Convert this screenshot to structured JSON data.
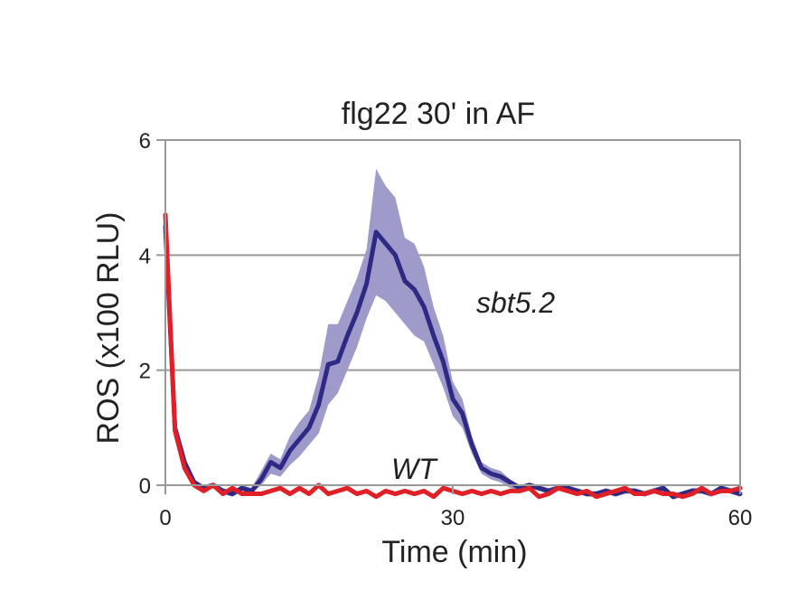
{
  "chart_data": {
    "type": "line",
    "title": "flg22 30' in AF",
    "xlabel": "Time (min)",
    "ylabel": "ROS (x100 RLU)",
    "xlim": [
      0,
      60
    ],
    "ylim": [
      0,
      6
    ],
    "xticks": [
      "0",
      "30",
      "60"
    ],
    "yticks": [
      "0",
      "2",
      "4",
      "6"
    ],
    "grid": "horizontal",
    "colors": {
      "sbt": "#2e2a84",
      "sbt_band": "#9e9bcb",
      "wt": "#e01f27",
      "axis": "#999999"
    },
    "series": [
      {
        "name": "sbt5.2",
        "x": [
          0,
          1,
          2,
          3,
          4,
          5,
          6,
          7,
          8,
          9,
          10,
          11,
          12,
          13,
          14,
          15,
          16,
          17,
          18,
          19,
          20,
          21,
          22,
          23,
          24,
          25,
          26,
          27,
          28,
          29,
          30,
          31,
          32,
          33,
          34,
          35,
          36,
          37,
          38,
          39,
          40,
          41,
          42,
          43,
          44,
          45,
          46,
          47,
          48,
          49,
          50,
          51,
          52,
          53,
          54,
          55,
          56,
          57,
          58,
          59,
          60
        ],
        "y": [
          4.5,
          1.0,
          0.4,
          0.05,
          -0.05,
          0.0,
          -0.1,
          -0.15,
          -0.05,
          -0.1,
          0.1,
          0.4,
          0.3,
          0.6,
          0.8,
          1.0,
          1.4,
          2.1,
          2.15,
          2.6,
          3.0,
          3.5,
          4.4,
          4.2,
          4.0,
          3.55,
          3.4,
          3.1,
          2.6,
          2.15,
          1.5,
          1.25,
          0.7,
          0.3,
          0.2,
          0.15,
          0.05,
          -0.05,
          0.0,
          -0.05,
          -0.1,
          -0.05,
          -0.05,
          -0.1,
          -0.15,
          -0.15,
          -0.1,
          -0.15,
          -0.1,
          -0.1,
          -0.15,
          -0.1,
          -0.05,
          -0.2,
          -0.15,
          -0.1,
          -0.1,
          -0.15,
          -0.05,
          -0.1,
          -0.15
        ],
        "y_lower": [
          4.3,
          0.9,
          0.35,
          0.0,
          -0.1,
          -0.05,
          -0.15,
          -0.2,
          -0.1,
          -0.15,
          0.0,
          0.2,
          0.15,
          0.35,
          0.5,
          0.7,
          0.9,
          1.4,
          1.6,
          2.0,
          2.4,
          2.9,
          3.3,
          3.2,
          3.0,
          2.8,
          2.6,
          2.5,
          2.1,
          1.7,
          1.2,
          1.0,
          0.55,
          0.2,
          0.1,
          0.05,
          -0.05,
          -0.1,
          -0.05,
          -0.1,
          -0.15,
          -0.1,
          -0.1,
          -0.15,
          -0.2,
          -0.2,
          -0.15,
          -0.2,
          -0.15,
          -0.15,
          -0.2,
          -0.15,
          -0.1,
          -0.25,
          -0.2,
          -0.15,
          -0.15,
          -0.2,
          -0.1,
          -0.15,
          -0.2
        ],
        "y_upper": [
          4.7,
          1.1,
          0.45,
          0.1,
          0.0,
          0.05,
          -0.05,
          -0.1,
          0.0,
          -0.05,
          0.25,
          0.55,
          0.45,
          0.85,
          1.1,
          1.3,
          1.9,
          2.8,
          2.8,
          3.2,
          3.6,
          4.1,
          5.5,
          5.2,
          5.0,
          4.3,
          4.2,
          3.8,
          3.1,
          2.6,
          1.8,
          1.5,
          0.85,
          0.4,
          0.3,
          0.25,
          0.1,
          0.0,
          0.05,
          0.0,
          -0.05,
          0.0,
          0.0,
          -0.05,
          -0.1,
          -0.1,
          -0.05,
          -0.1,
          -0.05,
          -0.05,
          -0.1,
          -0.05,
          0.0,
          -0.15,
          -0.1,
          -0.05,
          -0.05,
          -0.1,
          0.0,
          -0.05,
          -0.1
        ]
      },
      {
        "name": "WT",
        "x": [
          0,
          1,
          2,
          3,
          4,
          5,
          6,
          7,
          8,
          9,
          10,
          11,
          12,
          13,
          14,
          15,
          16,
          17,
          18,
          19,
          20,
          21,
          22,
          23,
          24,
          25,
          26,
          27,
          28,
          29,
          30,
          31,
          32,
          33,
          34,
          35,
          36,
          37,
          38,
          39,
          40,
          41,
          42,
          43,
          44,
          45,
          46,
          47,
          48,
          49,
          50,
          51,
          52,
          53,
          54,
          55,
          56,
          57,
          58,
          59,
          60
        ],
        "y": [
          4.7,
          0.95,
          0.3,
          0.0,
          -0.1,
          0.0,
          -0.15,
          -0.05,
          -0.15,
          -0.15,
          -0.15,
          -0.1,
          -0.05,
          -0.15,
          -0.05,
          -0.15,
          0.0,
          -0.15,
          -0.1,
          -0.05,
          -0.15,
          -0.1,
          -0.2,
          -0.1,
          -0.15,
          -0.1,
          -0.15,
          -0.1,
          -0.2,
          -0.05,
          -0.1,
          -0.15,
          -0.1,
          -0.15,
          -0.1,
          -0.15,
          -0.1,
          -0.1,
          -0.05,
          -0.2,
          -0.15,
          -0.05,
          -0.1,
          -0.15,
          -0.1,
          -0.2,
          -0.15,
          -0.1,
          -0.05,
          -0.15,
          -0.15,
          -0.1,
          -0.15,
          -0.15,
          -0.2,
          -0.15,
          -0.05,
          -0.15,
          -0.1,
          -0.1,
          -0.05
        ]
      }
    ]
  }
}
